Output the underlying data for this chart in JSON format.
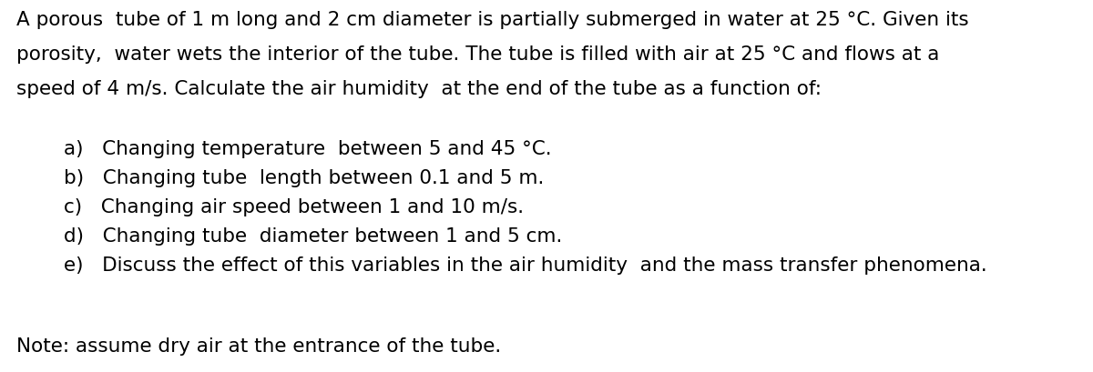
{
  "figsize": [
    12.0,
    4.09
  ],
  "dpi": 100,
  "background_color": "#ffffff",
  "line1": "A porous  tube of 1 m long and 2 cm diameter is partially submerged in water at 25 °C. Given its",
  "line2": "porosity,  water wets the interior of the tube. The tube is filled with air at 25 °C and flows at a",
  "line3": "speed of 4 m/s. Calculate the air humidity  at the end of the tube as a function of:",
  "items": [
    "a)   Changing temperature  between 5 and 45 °C.",
    "b)   Changing tube  length between 0.1 and 5 m.",
    "c)   Changing air speed between 1 and 10 m/s.",
    "d)   Changing tube  diameter between 1 and 5 cm.",
    "e)   Discuss the effect of this variables in the air humidity  and the mass transfer phenomena."
  ],
  "note": "Note: assume dry air at the entrance of the tube.",
  "font_size": 15.5,
  "font_family": "DejaVu Sans",
  "text_color": "#000000"
}
